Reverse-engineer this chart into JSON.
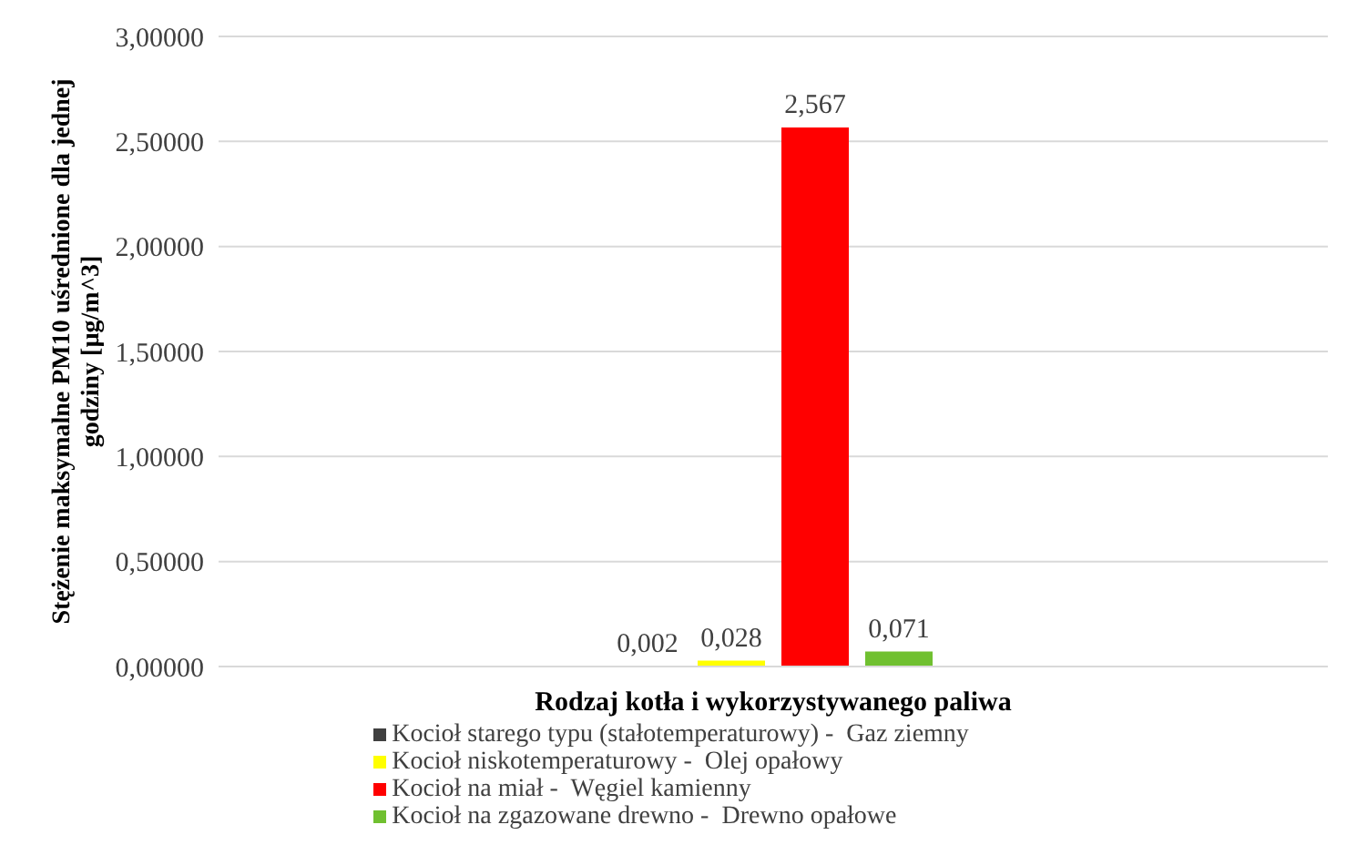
{
  "chart_data": {
    "type": "bar",
    "xlabel": "Rodzaj kotła i wykorzystywanego paliwa",
    "ylabel": "Stężenie maksymalne PM10 uśrednione dla jednej godziny  [µg/m^3]",
    "categories": [
      null
    ],
    "series": [
      {
        "name": "Kocioł starego typu (stałotemperaturowy) -  Gaz ziemny",
        "color": "#404040",
        "values": [
          0.002
        ],
        "value_labels": [
          "0,002"
        ]
      },
      {
        "name": "Kocioł niskotemperaturowy -  Olej opałowy",
        "color": "#ffff00",
        "values": [
          0.028
        ],
        "value_labels": [
          "0,028"
        ]
      },
      {
        "name": "Kocioł na miał -  Węgiel kamienny",
        "color": "#ff0000",
        "values": [
          2.567
        ],
        "value_labels": [
          "2,567"
        ]
      },
      {
        "name": "Kocioł na zgazowane drewno -  Drewno opałowe",
        "color": "#70c030",
        "values": [
          0.071
        ],
        "value_labels": [
          "0,071"
        ]
      }
    ],
    "ylim": [
      0,
      3
    ],
    "yticks": [
      {
        "value": 0,
        "label": "0,00000"
      },
      {
        "value": 0.5,
        "label": "0,50000"
      },
      {
        "value": 1,
        "label": "1,00000"
      },
      {
        "value": 1.5,
        "label": "1,50000"
      },
      {
        "value": 2,
        "label": "2,00000"
      },
      {
        "value": 2.5,
        "label": "2,50000"
      },
      {
        "value": 3,
        "label": "3,00000"
      }
    ],
    "grid": "y",
    "legend": "bottom"
  }
}
